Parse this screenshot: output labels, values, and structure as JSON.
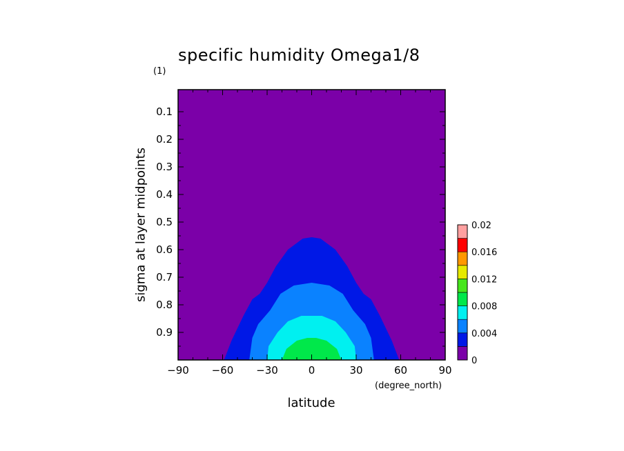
{
  "title": "specific humidity Omega1/8",
  "chart_data": {
    "type": "contour",
    "title": "specific humidity Omega1/8",
    "xlabel": "latitude",
    "x_unit": "(degree_north)",
    "ylabel": "sigma at layer midpoints",
    "y_unit": "(1)",
    "xlim": [
      -90,
      90
    ],
    "ylim": [
      1.0,
      0.02
    ],
    "x_ticks": [
      "-90",
      "-60",
      "-30",
      "0",
      "30",
      "60",
      "90"
    ],
    "y_ticks": [
      "0.1",
      "0.2",
      "0.3",
      "0.4",
      "0.5",
      "0.6",
      "0.7",
      "0.8",
      "0.9"
    ],
    "y_tick_values": [
      0.1,
      0.2,
      0.3,
      0.4,
      0.5,
      0.6,
      0.7,
      0.8,
      0.9
    ],
    "colorbar": {
      "levels": [
        0,
        0.002,
        0.004,
        0.006,
        0.008,
        0.01,
        0.012,
        0.014,
        0.016,
        0.018,
        0.02
      ],
      "labels": [
        "0",
        "0.004",
        "0.008",
        "0.012",
        "0.016",
        "0.02"
      ],
      "colors": [
        "#7b00a8",
        "#0018e6",
        "#0a82ff",
        "#00f0f0",
        "#00e84a",
        "#46e61c",
        "#e6ea00",
        "#ff9800",
        "#ff0000",
        "#ffa0a0"
      ]
    },
    "contours": [
      {
        "level": 0.002,
        "color": "#0018e6",
        "points": [
          [
            -59,
            1.0
          ],
          [
            -54,
            0.93
          ],
          [
            -46,
            0.84
          ],
          [
            -40,
            0.78
          ],
          [
            -35,
            0.76
          ],
          [
            -30,
            0.72
          ],
          [
            -24,
            0.66
          ],
          [
            -16,
            0.6
          ],
          [
            -6,
            0.56
          ],
          [
            0,
            0.555
          ],
          [
            6,
            0.56
          ],
          [
            16,
            0.6
          ],
          [
            24,
            0.66
          ],
          [
            30,
            0.72
          ],
          [
            35,
            0.76
          ],
          [
            40,
            0.78
          ],
          [
            46,
            0.84
          ],
          [
            54,
            0.93
          ],
          [
            59,
            1.0
          ]
        ]
      },
      {
        "level": 0.004,
        "color": "#0a82ff",
        "points": [
          [
            -42,
            1.0
          ],
          [
            -40,
            0.92
          ],
          [
            -36,
            0.87
          ],
          [
            -28,
            0.82
          ],
          [
            -21,
            0.76
          ],
          [
            -12,
            0.73
          ],
          [
            0,
            0.72
          ],
          [
            12,
            0.73
          ],
          [
            21,
            0.76
          ],
          [
            28,
            0.82
          ],
          [
            36,
            0.87
          ],
          [
            40,
            0.92
          ],
          [
            42,
            1.0
          ]
        ]
      },
      {
        "level": 0.006,
        "color": "#00f0f0",
        "points": [
          [
            -30,
            1.0
          ],
          [
            -29,
            0.95
          ],
          [
            -23,
            0.9
          ],
          [
            -16,
            0.86
          ],
          [
            -7,
            0.84
          ],
          [
            0,
            0.84
          ],
          [
            7,
            0.84
          ],
          [
            16,
            0.86
          ],
          [
            23,
            0.9
          ],
          [
            29,
            0.95
          ],
          [
            30,
            1.0
          ]
        ]
      },
      {
        "level": 0.008,
        "color": "#00e84a",
        "points": [
          [
            -20,
            1.0
          ],
          [
            -17,
            0.96
          ],
          [
            -10,
            0.93
          ],
          [
            -3,
            0.92
          ],
          [
            0,
            0.92
          ],
          [
            3,
            0.92
          ],
          [
            10,
            0.93
          ],
          [
            17,
            0.96
          ],
          [
            20,
            1.0
          ]
        ]
      }
    ]
  }
}
